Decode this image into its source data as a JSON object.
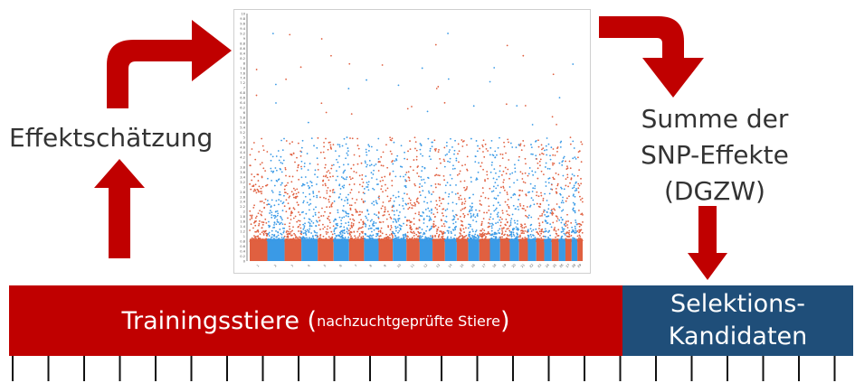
{
  "labels": {
    "effect_estimation": "Effektschätzung",
    "sum_line1": "Summe der",
    "sum_line2": "SNP-Effekte",
    "sum_line3": "(DGZW)"
  },
  "training_bar": {
    "main": "Trainingsstiere (",
    "sub": "nachzuchtgeprüfte Stiere",
    "close": ")"
  },
  "selection_bar": {
    "line1": "Selektions-",
    "line2": "Kandidaten"
  },
  "colors": {
    "training": "#c00000",
    "selection": "#1f4e79",
    "arrow": "#c00000",
    "snp_orange": "#e06040",
    "snp_blue": "#3a9ae6"
  },
  "chart_data": {
    "type": "scatter",
    "description_kind": "manhattan",
    "chromosomes": 29,
    "series_colors": [
      "#e06040",
      "#3a9ae6"
    ],
    "ylim": [
      0,
      10
    ],
    "y_ticks": [
      "0",
      "0.2",
      "0.4",
      "0.6",
      "0.8",
      "1",
      "1.2",
      "1.4",
      "1.6",
      "1.8",
      "2",
      "2.2",
      "2.4",
      "2.6",
      "2.8",
      "3",
      "3.2",
      "3.4",
      "3.6",
      "3.8",
      "4",
      "4.2",
      "4.4",
      "4.6",
      "4.8",
      "5",
      "5.2",
      "5.4",
      "5.6",
      "5.8",
      "6",
      "6.2",
      "6.4",
      "6.6",
      "6.8",
      "7",
      "7.2",
      "7.4",
      "7.6",
      "7.8",
      "8",
      "8.2",
      "8.4",
      "8.6",
      "8.8",
      "9",
      "9.2",
      "9.4",
      "9.6",
      "9.8",
      "10"
    ],
    "x_ticks": [
      "1",
      "2",
      "3",
      "4",
      "5",
      "6",
      "7",
      "8",
      "9",
      "10",
      "11",
      "12",
      "13",
      "14",
      "15",
      "16",
      "17",
      "18",
      "19",
      "20",
      "21",
      "22",
      "23",
      "24",
      "25",
      "26",
      "27",
      "28",
      "29"
    ]
  }
}
